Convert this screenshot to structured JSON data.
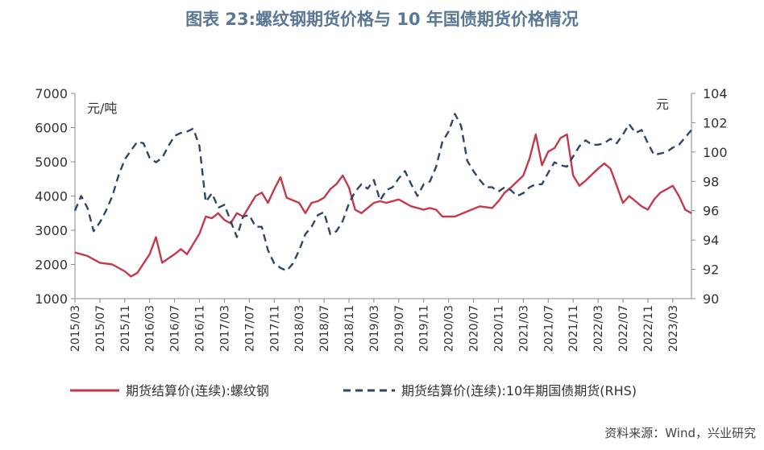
{
  "title": "图表 23:螺纹钢期货价格与 10 年国债期货价格情况",
  "source": "资料来源：Wind，兴业研究",
  "colors": {
    "rebar": "#c23a4b",
    "bond": "#2f4668",
    "axis": "#888888",
    "title": "#5a7896"
  },
  "chart_data": {
    "type": "line",
    "title": "图表 23:螺纹钢期货价格与 10 年国债期货价格情况",
    "left_axis": {
      "label": "元/吨",
      "ylim": [
        1000,
        7000
      ],
      "ticks": [
        1000,
        2000,
        3000,
        4000,
        5000,
        6000,
        7000
      ]
    },
    "right_axis": {
      "label": "元",
      "ylim": [
        90,
        104
      ],
      "ticks": [
        90,
        92,
        94,
        96,
        98,
        100,
        102,
        104
      ]
    },
    "x_range": [
      "2015-03",
      "2023-06"
    ],
    "x_ticks": [
      "2015/03",
      "2015/07",
      "2015/11",
      "2016/03",
      "2016/07",
      "2016/11",
      "2017/03",
      "2017/07",
      "2017/11",
      "2018/03",
      "2018/07",
      "2018/11",
      "2019/03",
      "2019/07",
      "2019/11",
      "2020/03",
      "2020/07",
      "2020/11",
      "2021/03",
      "2021/07",
      "2021/11",
      "2022/03",
      "2022/07",
      "2022/11",
      "2023/03"
    ],
    "legend_placement": "bottom",
    "series": [
      {
        "name": "期货结算价(连续):螺纹钢",
        "axis": "left",
        "style": "solid",
        "points": [
          [
            "2015-03",
            2350
          ],
          [
            "2015-05",
            2250
          ],
          [
            "2015-07",
            2050
          ],
          [
            "2015-09",
            2000
          ],
          [
            "2015-11",
            1800
          ],
          [
            "2015-12",
            1650
          ],
          [
            "2016-01",
            1750
          ],
          [
            "2016-03",
            2300
          ],
          [
            "2016-04",
            2800
          ],
          [
            "2016-05",
            2050
          ],
          [
            "2016-07",
            2300
          ],
          [
            "2016-08",
            2450
          ],
          [
            "2016-09",
            2300
          ],
          [
            "2016-10",
            2600
          ],
          [
            "2016-11",
            2900
          ],
          [
            "2016-12",
            3400
          ],
          [
            "2017-01",
            3350
          ],
          [
            "2017-02",
            3500
          ],
          [
            "2017-03",
            3300
          ],
          [
            "2017-04",
            3200
          ],
          [
            "2017-05",
            3500
          ],
          [
            "2017-06",
            3400
          ],
          [
            "2017-07",
            3700
          ],
          [
            "2017-08",
            4000
          ],
          [
            "2017-09",
            4100
          ],
          [
            "2017-10",
            3800
          ],
          [
            "2017-11",
            4200
          ],
          [
            "2017-12",
            4550
          ],
          [
            "2018-01",
            3950
          ],
          [
            "2018-03",
            3800
          ],
          [
            "2018-04",
            3500
          ],
          [
            "2018-05",
            3800
          ],
          [
            "2018-06",
            3850
          ],
          [
            "2018-07",
            3950
          ],
          [
            "2018-08",
            4200
          ],
          [
            "2018-09",
            4350
          ],
          [
            "2018-10",
            4600
          ],
          [
            "2018-11",
            4250
          ],
          [
            "2018-12",
            3600
          ],
          [
            "2019-01",
            3500
          ],
          [
            "2019-03",
            3800
          ],
          [
            "2019-04",
            3850
          ],
          [
            "2019-05",
            3800
          ],
          [
            "2019-07",
            3900
          ],
          [
            "2019-09",
            3700
          ],
          [
            "2019-11",
            3600
          ],
          [
            "2019-12",
            3650
          ],
          [
            "2020-01",
            3600
          ],
          [
            "2020-02",
            3400
          ],
          [
            "2020-04",
            3400
          ],
          [
            "2020-06",
            3550
          ],
          [
            "2020-08",
            3700
          ],
          [
            "2020-10",
            3650
          ],
          [
            "2020-11",
            3850
          ],
          [
            "2020-12",
            4100
          ],
          [
            "2021-01",
            4250
          ],
          [
            "2021-03",
            4600
          ],
          [
            "2021-04",
            5100
          ],
          [
            "2021-05",
            5800
          ],
          [
            "2021-06",
            4900
          ],
          [
            "2021-07",
            5300
          ],
          [
            "2021-08",
            5400
          ],
          [
            "2021-09",
            5700
          ],
          [
            "2021-10",
            5800
          ],
          [
            "2021-11",
            4600
          ],
          [
            "2021-12",
            4300
          ],
          [
            "2022-01",
            4450
          ],
          [
            "2022-03",
            4800
          ],
          [
            "2022-04",
            4950
          ],
          [
            "2022-05",
            4800
          ],
          [
            "2022-06",
            4300
          ],
          [
            "2022-07",
            3800
          ],
          [
            "2022-08",
            4000
          ],
          [
            "2022-10",
            3700
          ],
          [
            "2022-11",
            3600
          ],
          [
            "2022-12",
            3900
          ],
          [
            "2023-01",
            4100
          ],
          [
            "2023-03",
            4300
          ],
          [
            "2023-04",
            4000
          ],
          [
            "2023-05",
            3600
          ],
          [
            "2023-06",
            3500
          ]
        ]
      },
      {
        "name": "期货结算价(连续):10年期国债期货(RHS)",
        "axis": "right",
        "style": "dashed",
        "points": [
          [
            "2015-03",
            96.0
          ],
          [
            "2015-04",
            97.0
          ],
          [
            "2015-05",
            96.2
          ],
          [
            "2015-06",
            94.6
          ],
          [
            "2015-07",
            95.2
          ],
          [
            "2015-08",
            96.0
          ],
          [
            "2015-09",
            97.0
          ],
          [
            "2015-10",
            98.4
          ],
          [
            "2015-11",
            99.5
          ],
          [
            "2015-12",
            100.1
          ],
          [
            "2016-01",
            100.7
          ],
          [
            "2016-02",
            100.6
          ],
          [
            "2016-03",
            99.6
          ],
          [
            "2016-04",
            99.3
          ],
          [
            "2016-05",
            99.6
          ],
          [
            "2016-06",
            100.4
          ],
          [
            "2016-07",
            101.1
          ],
          [
            "2016-08",
            101.3
          ],
          [
            "2016-09",
            101.4
          ],
          [
            "2016-10",
            101.6
          ],
          [
            "2016-11",
            100.4
          ],
          [
            "2016-12",
            96.6
          ],
          [
            "2017-01",
            97.2
          ],
          [
            "2017-02",
            96.2
          ],
          [
            "2017-03",
            96.4
          ],
          [
            "2017-04",
            95.3
          ],
          [
            "2017-05",
            94.2
          ],
          [
            "2017-06",
            95.6
          ],
          [
            "2017-07",
            95.7
          ],
          [
            "2017-08",
            94.9
          ],
          [
            "2017-09",
            94.9
          ],
          [
            "2017-10",
            93.3
          ],
          [
            "2017-11",
            92.4
          ],
          [
            "2017-12",
            92.1
          ],
          [
            "2018-01",
            91.9
          ],
          [
            "2018-02",
            92.4
          ],
          [
            "2018-03",
            93.3
          ],
          [
            "2018-04",
            94.4
          ],
          [
            "2018-05",
            94.9
          ],
          [
            "2018-06",
            95.7
          ],
          [
            "2018-07",
            95.9
          ],
          [
            "2018-08",
            94.4
          ],
          [
            "2018-09",
            94.6
          ],
          [
            "2018-10",
            95.3
          ],
          [
            "2018-11",
            96.5
          ],
          [
            "2018-12",
            97.3
          ],
          [
            "2019-01",
            97.8
          ],
          [
            "2019-02",
            97.5
          ],
          [
            "2019-03",
            98.1
          ],
          [
            "2019-04",
            96.7
          ],
          [
            "2019-05",
            97.4
          ],
          [
            "2019-06",
            97.6
          ],
          [
            "2019-07",
            98.2
          ],
          [
            "2019-08",
            98.7
          ],
          [
            "2019-09",
            97.8
          ],
          [
            "2019-10",
            97.0
          ],
          [
            "2019-11",
            97.8
          ],
          [
            "2019-12",
            98.0
          ],
          [
            "2020-01",
            99.0
          ],
          [
            "2020-02",
            100.7
          ],
          [
            "2020-03",
            101.4
          ],
          [
            "2020-04",
            102.6
          ],
          [
            "2020-05",
            101.8
          ],
          [
            "2020-06",
            99.4
          ],
          [
            "2020-07",
            98.7
          ],
          [
            "2020-08",
            98.1
          ],
          [
            "2020-09",
            97.6
          ],
          [
            "2020-10",
            97.6
          ],
          [
            "2020-11",
            97.3
          ],
          [
            "2020-12",
            97.6
          ],
          [
            "2021-01",
            97.4
          ],
          [
            "2021-02",
            97.0
          ],
          [
            "2021-03",
            97.2
          ],
          [
            "2021-04",
            97.6
          ],
          [
            "2021-05",
            97.8
          ],
          [
            "2021-06",
            97.8
          ],
          [
            "2021-07",
            98.6
          ],
          [
            "2021-08",
            99.3
          ],
          [
            "2021-09",
            99.1
          ],
          [
            "2021-10",
            99.0
          ],
          [
            "2021-11",
            99.7
          ],
          [
            "2021-12",
            100.4
          ],
          [
            "2022-01",
            100.8
          ],
          [
            "2022-02",
            100.5
          ],
          [
            "2022-03",
            100.5
          ],
          [
            "2022-04",
            100.6
          ],
          [
            "2022-05",
            100.9
          ],
          [
            "2022-06",
            100.6
          ],
          [
            "2022-07",
            101.2
          ],
          [
            "2022-08",
            101.9
          ],
          [
            "2022-09",
            101.3
          ],
          [
            "2022-10",
            101.5
          ],
          [
            "2022-11",
            100.6
          ],
          [
            "2022-12",
            99.8
          ],
          [
            "2023-01",
            99.9
          ],
          [
            "2023-02",
            100.0
          ],
          [
            "2023-03",
            100.3
          ],
          [
            "2023-04",
            100.5
          ],
          [
            "2023-05",
            101.0
          ],
          [
            "2023-06",
            101.5
          ]
        ]
      }
    ]
  }
}
